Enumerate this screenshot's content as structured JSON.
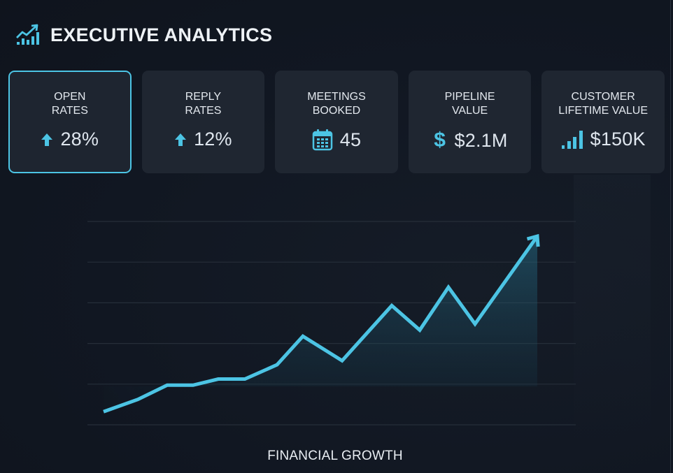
{
  "header": {
    "title": "EXECUTIVE ANALYTICS",
    "icon": "trend-chart-icon"
  },
  "colors": {
    "accent": "#4cc4e4",
    "background": "#111722",
    "card": "#1f2631",
    "gridline": "#262e39",
    "text": "#e6ecf2"
  },
  "cards": [
    {
      "label": "OPEN\nRATES",
      "value": "28%",
      "icon": "arrow-up-icon",
      "active": true
    },
    {
      "label": "REPLY\nRATES",
      "value": "12%",
      "icon": "arrow-up-icon",
      "active": false
    },
    {
      "label": "MEETINGS\nBOOKED",
      "value": "45",
      "icon": "calendar-icon",
      "active": false
    },
    {
      "label": "PIPELINE\nVALUE",
      "value": "$2.1M",
      "icon": "dollar-icon",
      "active": false
    },
    {
      "label": "CUSTOMER\nLIFETIME VALUE",
      "value": "$150K",
      "icon": "bar-signal-icon",
      "active": false
    }
  ],
  "chart_data": {
    "type": "line",
    "title": "FINANCIAL GROWTH",
    "xlabel": "",
    "ylabel": "",
    "grid": true,
    "gridlines": 6,
    "x": [
      1,
      2,
      3,
      4,
      5,
      6,
      7,
      8,
      9,
      10,
      11,
      12,
      13,
      14
    ],
    "values": [
      3,
      9,
      16,
      16,
      19,
      19,
      26,
      40,
      28,
      55,
      43,
      64,
      46,
      89
    ],
    "ylim": [
      0,
      100
    ],
    "area_fill": true,
    "end_arrow": true,
    "legend": null,
    "tick_labels": []
  }
}
